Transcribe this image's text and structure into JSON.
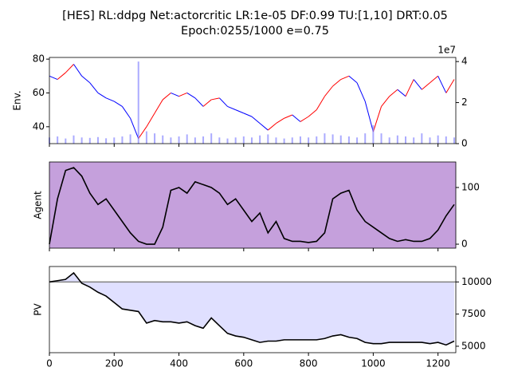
{
  "title": [
    "[HES] RL:ddpg Net:actorcritic LR:1e-05 DF:0.99 TU:[1,10] DRT:0.05",
    "Epoch:0255/1000 e=0.75"
  ],
  "chart_data": [
    {
      "type": "line",
      "ylabel": "Env.",
      "x": [
        0,
        25,
        50,
        75,
        100,
        125,
        150,
        175,
        200,
        225,
        250,
        275,
        300,
        325,
        350,
        375,
        400,
        425,
        450,
        475,
        500,
        525,
        550,
        575,
        600,
        625,
        650,
        675,
        700,
        725,
        750,
        775,
        800,
        825,
        850,
        875,
        900,
        925,
        950,
        975,
        1000,
        1025,
        1050,
        1075,
        1100,
        1125,
        1150,
        1175,
        1200,
        1225,
        1250
      ],
      "xlim": [
        0,
        1255
      ],
      "xticks": [
        0,
        200,
        400,
        600,
        800,
        1000,
        1200
      ],
      "ylim": [
        30,
        81
      ],
      "yticks": [
        40,
        60,
        80
      ],
      "y2lim": [
        0,
        42000000
      ],
      "y2ticks": [
        {
          "value": 0,
          "label": "0"
        },
        {
          "value": 20000000,
          "label": "2"
        },
        {
          "value": 40000000,
          "label": "4"
        }
      ],
      "y2_offset_label": "1e7",
      "series": [
        {
          "values": [
            70,
            68,
            72,
            77,
            70,
            66,
            60,
            57,
            55,
            52,
            45,
            33,
            40,
            48,
            56,
            60,
            58,
            60,
            57,
            52,
            56,
            57,
            52,
            50,
            48,
            46,
            42,
            38,
            42,
            45,
            47,
            43,
            46,
            50,
            58,
            64,
            68,
            70,
            66,
            55,
            37,
            52,
            58,
            62,
            58,
            68,
            62,
            66,
            70,
            60,
            68
          ],
          "up_color": "#ff0000",
          "down_color": "#0000ff"
        },
        {
          "type": "bar",
          "axis": "y2",
          "color": "#8888ff",
          "values": [
            3000000,
            3500000,
            2500000,
            4000000,
            3000000,
            2800000,
            3200000,
            2600000,
            3000000,
            3500000,
            4500000,
            40000000,
            6000000,
            5000000,
            4000000,
            3000000,
            3500000,
            4500000,
            3000000,
            3500000,
            5000000,
            3000000,
            2500000,
            3000000,
            3500000,
            3000000,
            4000000,
            4500000,
            3000000,
            2500000,
            3000000,
            3500000,
            3000000,
            3500000,
            5000000,
            4500000,
            4000000,
            3500000,
            3000000,
            5000000,
            9000000,
            5000000,
            3000000,
            4000000,
            3500000,
            3000000,
            5000000,
            3000000,
            4000000,
            3500000,
            3000000
          ]
        }
      ]
    },
    {
      "type": "line",
      "ylabel": "Agent",
      "background": "#bb8fd6",
      "x": [
        0,
        25,
        50,
        75,
        100,
        125,
        150,
        175,
        200,
        225,
        250,
        275,
        300,
        325,
        350,
        375,
        400,
        425,
        450,
        475,
        500,
        525,
        550,
        575,
        600,
        625,
        650,
        675,
        700,
        725,
        750,
        775,
        800,
        825,
        850,
        875,
        900,
        925,
        950,
        975,
        1000,
        1025,
        1050,
        1075,
        1100,
        1125,
        1150,
        1175,
        1200,
        1225,
        1250
      ],
      "xlim": [
        0,
        1255
      ],
      "xticks": [
        0,
        200,
        400,
        600,
        800,
        1000,
        1200
      ],
      "y2lim": [
        -7,
        145
      ],
      "y2ticks": [
        0,
        100
      ],
      "series": [
        {
          "axis": "y2",
          "color": "#000000",
          "values": [
            0,
            80,
            130,
            135,
            120,
            90,
            70,
            80,
            60,
            40,
            20,
            5,
            0,
            0,
            30,
            95,
            100,
            90,
            110,
            105,
            100,
            90,
            70,
            80,
            60,
            40,
            55,
            20,
            40,
            10,
            5,
            5,
            3,
            5,
            20,
            80,
            90,
            95,
            60,
            40,
            30,
            20,
            10,
            5,
            8,
            5,
            5,
            10,
            25,
            50,
            70
          ]
        }
      ]
    },
    {
      "type": "area",
      "ylabel": "PV",
      "baseline": 10000,
      "baseline_color": "#808080",
      "fill_color": "#e0e0ff",
      "x": [
        0,
        25,
        50,
        75,
        100,
        125,
        150,
        175,
        200,
        225,
        250,
        275,
        300,
        325,
        350,
        375,
        400,
        425,
        450,
        475,
        500,
        525,
        550,
        575,
        600,
        625,
        650,
        675,
        700,
        725,
        750,
        775,
        800,
        825,
        850,
        875,
        900,
        925,
        950,
        975,
        1000,
        1025,
        1050,
        1075,
        1100,
        1125,
        1150,
        1175,
        1200,
        1225,
        1250
      ],
      "xlim": [
        0,
        1255
      ],
      "xticks": [
        0,
        200,
        400,
        600,
        800,
        1000,
        1200
      ],
      "xtick_labels": true,
      "y2lim": [
        4500,
        11200
      ],
      "y2ticks": [
        5000,
        7500,
        10000
      ],
      "series": [
        {
          "axis": "y2",
          "color": "#000000",
          "values": [
            10000,
            10100,
            10200,
            10700,
            9900,
            9600,
            9200,
            8900,
            8400,
            7900,
            7800,
            7700,
            6800,
            7000,
            6900,
            6900,
            6800,
            6900,
            6600,
            6400,
            7200,
            6600,
            6000,
            5800,
            5700,
            5500,
            5300,
            5400,
            5400,
            5500,
            5500,
            5500,
            5500,
            5500,
            5600,
            5800,
            5900,
            5700,
            5600,
            5300,
            5200,
            5200,
            5300,
            5300,
            5300,
            5300,
            5300,
            5200,
            5300,
            5100,
            5400
          ]
        }
      ]
    }
  ]
}
